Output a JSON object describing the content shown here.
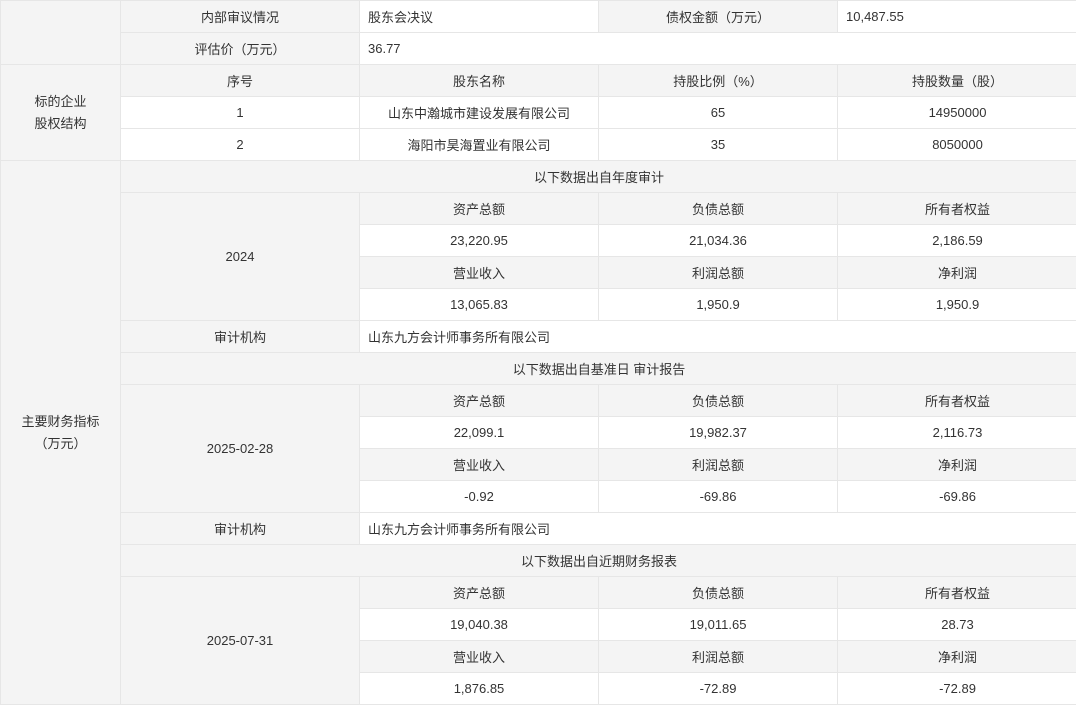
{
  "info": {
    "internal_review_label": "内部审议情况",
    "internal_review_value": "股东会决议",
    "claim_amount_label": "债权金额（万元）",
    "claim_amount_value": "10,487.55",
    "valuation_label": "评估价（万元）",
    "valuation_value": "36.77"
  },
  "equity": {
    "section_label_1": "标的企业",
    "section_label_2": "股权结构",
    "headers": [
      "序号",
      "股东名称",
      "持股比例（%）",
      "持股数量（股）"
    ],
    "rows": [
      [
        "1",
        "山东中瀚城市建设发展有限公司",
        "65",
        "14950000"
      ],
      [
        "2",
        "海阳市昊海置业有限公司",
        "35",
        "8050000"
      ]
    ]
  },
  "financials": {
    "section_label_1": "主要财务指标",
    "section_label_2": "（万元）",
    "audit_org_label": "审计机构",
    "headers_a": [
      "资产总额",
      "负债总额",
      "所有者权益"
    ],
    "headers_b": [
      "营业收入",
      "利润总额",
      "净利润"
    ],
    "periods": [
      {
        "title": "以下数据出自年度审计",
        "date": "2024",
        "values_a": [
          "23,220.95",
          "21,034.36",
          "2,186.59"
        ],
        "values_b": [
          "13,065.83",
          "1,950.9",
          "1,950.9"
        ],
        "audit_org": "山东九方会计师事务所有限公司"
      },
      {
        "title": "以下数据出自基准日 审计报告",
        "date": "2025-02-28",
        "values_a": [
          "22,099.1",
          "19,982.37",
          "2,116.73"
        ],
        "values_b": [
          "-0.92",
          "-69.86",
          "-69.86"
        ],
        "audit_org": "山东九方会计师事务所有限公司"
      },
      {
        "title": "以下数据出自近期财务报表",
        "date": "2025-07-31",
        "values_a": [
          "19,040.38",
          "19,011.65",
          "28.73"
        ],
        "values_b": [
          "1,876.85",
          "-72.89",
          "-72.89"
        ]
      }
    ]
  }
}
